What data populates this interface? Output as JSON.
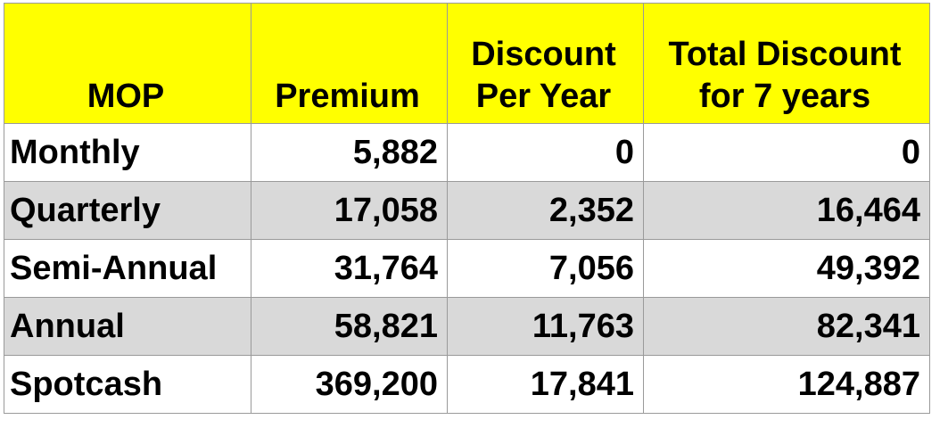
{
  "colors": {
    "header_bg": "#ffff00",
    "band_bg": "#d9d9d9",
    "plain_bg": "#ffffff",
    "text": "#000000"
  },
  "table": {
    "headers": [
      [
        "MOP"
      ],
      [
        "Premium"
      ],
      [
        "Discount",
        "Per Year"
      ],
      [
        "Total Discount",
        "for 7 years"
      ]
    ],
    "rows": [
      [
        "Monthly",
        "5,882",
        "0",
        "0"
      ],
      [
        "Quarterly",
        "17,058",
        "2,352",
        "16,464"
      ],
      [
        "Semi-Annual",
        "31,764",
        "7,056",
        "49,392"
      ],
      [
        "Annual",
        "58,821",
        "11,763",
        "82,341"
      ],
      [
        "Spotcash",
        "369,200",
        "17,841",
        "124,887"
      ]
    ]
  }
}
